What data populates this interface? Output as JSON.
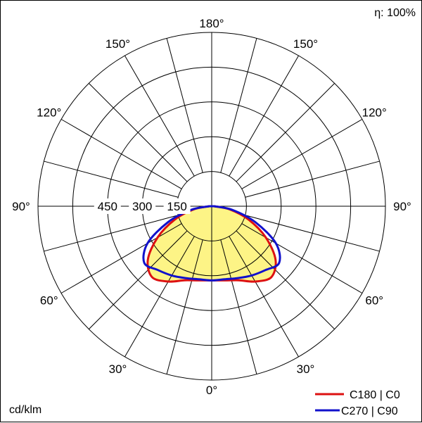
{
  "chart_data": {
    "type": "polar",
    "efficiency_label": "η: 100%",
    "unit_label": "cd/klm",
    "angle_labels": [
      {
        "text": "180°",
        "angle": 180,
        "side": "center"
      },
      {
        "text": "150°",
        "angle": 150,
        "side": "left"
      },
      {
        "text": "150°",
        "angle": 150,
        "side": "right"
      },
      {
        "text": "120°",
        "angle": 120,
        "side": "left"
      },
      {
        "text": "120°",
        "angle": 120,
        "side": "right"
      },
      {
        "text": "90°",
        "angle": 90,
        "side": "left"
      },
      {
        "text": "90°",
        "angle": 90,
        "side": "right"
      },
      {
        "text": "60°",
        "angle": 60,
        "side": "left"
      },
      {
        "text": "60°",
        "angle": 60,
        "side": "right"
      },
      {
        "text": "30°",
        "angle": 30,
        "side": "left"
      },
      {
        "text": "30°",
        "angle": 30,
        "side": "right"
      },
      {
        "text": "0°",
        "angle": 0,
        "side": "center"
      }
    ],
    "radial_ticks": [
      {
        "value": 150,
        "text": "150"
      },
      {
        "value": 300,
        "text": "300"
      },
      {
        "value": 450,
        "text": "450"
      }
    ],
    "rmax": 750,
    "series": [
      {
        "name": "C180 | C0",
        "color": "#dd1111",
        "angles_deg": [
          0,
          10,
          20,
          30,
          40,
          50,
          60,
          70,
          80,
          90
        ],
        "values": [
          320,
          325,
          340,
          375,
          400,
          360,
          270,
          170,
          80,
          10
        ]
      },
      {
        "name": "C270 | C90",
        "color": "#1111cc",
        "angles_deg": [
          0,
          10,
          20,
          30,
          40,
          50,
          60,
          70,
          80,
          90
        ],
        "values": [
          320,
          320,
          330,
          345,
          360,
          380,
          320,
          200,
          90,
          10
        ]
      }
    ],
    "fill_color": "#fdf486"
  }
}
